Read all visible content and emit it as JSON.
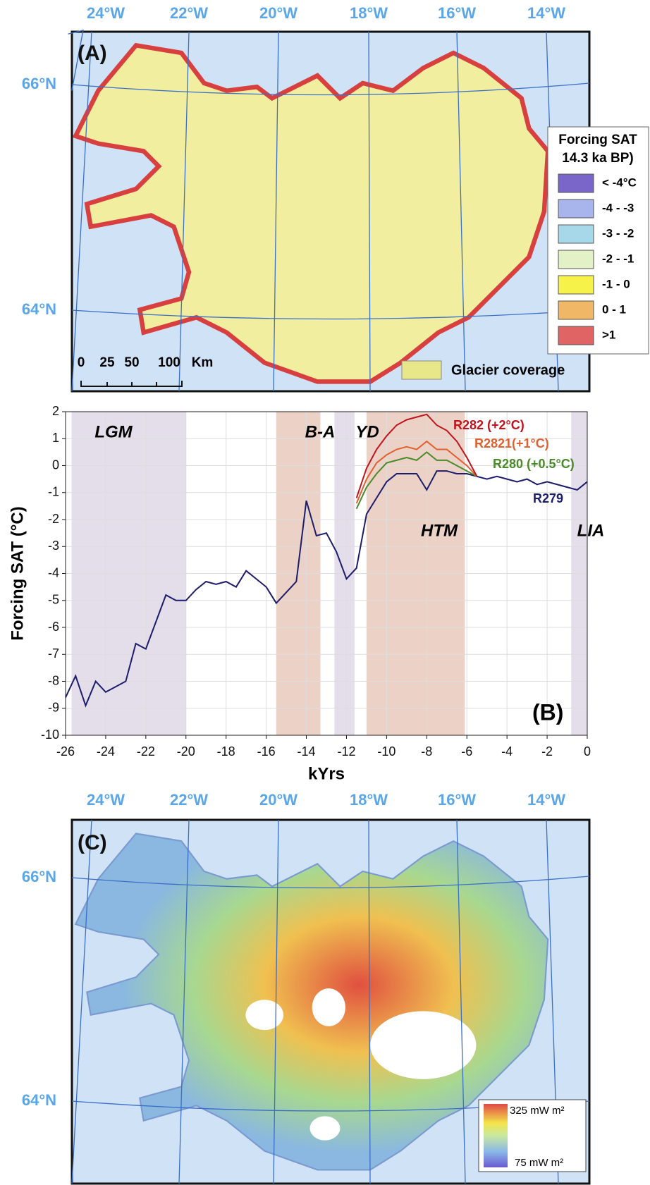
{
  "map_a": {
    "panel_label": "(A)",
    "lon_labels": [
      "24°W",
      "22°W",
      "20°W",
      "18°W",
      "16°W",
      "14°W"
    ],
    "lat_labels": [
      "66°N",
      "64°N"
    ],
    "scale_bar": [
      "0",
      "25",
      "50",
      "100",
      "Km"
    ],
    "legend": {
      "title": [
        "Forcing SAT",
        "14.3 ka BP)"
      ],
      "items": [
        {
          "label": "< -4°C",
          "color": "#7a66c8"
        },
        {
          "label": "-4 - -3",
          "color": "#a8b4ec"
        },
        {
          "label": "-3 - -2",
          "color": "#a6d8ea"
        },
        {
          "label": "-2 - -1",
          "color": "#e4f0c6"
        },
        {
          "label": "-1 - 0",
          "color": "#f7f24a"
        },
        {
          "label": "0 - 1",
          "color": "#f0b866"
        },
        {
          "label": ">1",
          "color": "#e06464"
        }
      ]
    },
    "glacier_label": "Glacier coverage"
  },
  "chart_data": {
    "type": "line",
    "panel_label": "(B)",
    "xlabel": "kYrs",
    "ylabel": "Forcing SAT (°C)",
    "xlim": [
      -26,
      0
    ],
    "xticks": [
      -26,
      -24,
      -22,
      -20,
      -18,
      -16,
      -14,
      -12,
      -10,
      -8,
      -6,
      -4,
      -2,
      0
    ],
    "ylim": [
      -10,
      2
    ],
    "yticks": [
      -10,
      -9,
      -8,
      -7,
      -6,
      -5,
      -4,
      -3,
      -2,
      -1,
      0,
      1,
      2
    ],
    "grid": true,
    "periods": [
      {
        "name": "LGM",
        "start": -25.7,
        "end": -20,
        "color": "#e3deea"
      },
      {
        "name": "B-A",
        "start": -15.5,
        "end": -13.3,
        "color": "#ecd2c6"
      },
      {
        "name": "YD",
        "start": -12.6,
        "end": -11.6,
        "color": "#e3deea"
      },
      {
        "name": "HTM",
        "start": -11,
        "end": -6.1,
        "color": "#ecd2c6"
      },
      {
        "name": "LIA",
        "start": -0.8,
        "end": 0,
        "color": "#e3deea"
      }
    ],
    "series": [
      {
        "name": "R279",
        "color": "#1c1c6a",
        "x": [
          -26,
          -25.5,
          -25,
          -24.5,
          -24,
          -23.5,
          -23,
          -22.5,
          -22,
          -21.5,
          -21,
          -20.5,
          -20,
          -19.5,
          -19,
          -18.5,
          -18,
          -17.5,
          -17,
          -16.5,
          -16,
          -15.5,
          -15,
          -14.5,
          -14,
          -13.5,
          -13,
          -12.5,
          -12,
          -11.5,
          -11,
          -10.5,
          -10,
          -9.5,
          -9,
          -8.5,
          -8,
          -7.5,
          -7,
          -6.5,
          -6,
          -5.5,
          -5,
          -4.5,
          -4,
          -3.5,
          -3,
          -2.5,
          -2,
          -1.5,
          -1,
          -0.5,
          0
        ],
        "values": [
          -8.6,
          -7.8,
          -8.9,
          -8.0,
          -8.4,
          -8.2,
          -8.0,
          -6.6,
          -6.8,
          -5.8,
          -4.8,
          -5.0,
          -5.0,
          -4.6,
          -4.3,
          -4.4,
          -4.3,
          -4.5,
          -3.9,
          -4.2,
          -4.5,
          -5.1,
          -4.7,
          -4.3,
          -1.3,
          -2.6,
          -2.5,
          -3.2,
          -4.2,
          -3.8,
          -1.8,
          -1.2,
          -0.6,
          -0.3,
          -0.3,
          -0.3,
          -0.9,
          -0.2,
          -0.2,
          -0.3,
          -0.3,
          -0.4,
          -0.5,
          -0.4,
          -0.5,
          -0.6,
          -0.5,
          -0.7,
          -0.6,
          -0.7,
          -0.8,
          -0.9,
          -0.6
        ]
      },
      {
        "name": "R280 (+0.5°C)",
        "color": "#4a8a2a",
        "x": [
          -11.5,
          -11,
          -10.5,
          -10,
          -9.5,
          -9,
          -8.5,
          -8,
          -7.5,
          -7,
          -6.5,
          -6,
          -5.5
        ],
        "values": [
          -1.6,
          -0.8,
          -0.3,
          0.1,
          0.2,
          0.3,
          0.2,
          0.5,
          0.2,
          0.2,
          0.0,
          -0.2,
          -0.4
        ]
      },
      {
        "name": "R2821(+1°C)",
        "color": "#e06030",
        "x": [
          -11.5,
          -11,
          -10.5,
          -10,
          -9.5,
          -9,
          -8.5,
          -8,
          -7.5,
          -7,
          -6.5,
          -6,
          -5.5
        ],
        "values": [
          -1.4,
          -0.5,
          0.1,
          0.4,
          0.6,
          0.7,
          0.6,
          0.9,
          0.6,
          0.6,
          0.3,
          0.0,
          -0.4
        ]
      },
      {
        "name": "R282 (+2°C)",
        "color": "#c0141c",
        "x": [
          -11.5,
          -11,
          -10.5,
          -10,
          -9.5,
          -9,
          -8.5,
          -8,
          -7.5,
          -7,
          -6.5,
          -6,
          -5.5
        ],
        "values": [
          -1.2,
          -0.1,
          0.6,
          1.1,
          1.5,
          1.7,
          1.8,
          1.9,
          1.5,
          1.3,
          0.9,
          0.3,
          -0.4
        ]
      }
    ]
  },
  "map_c": {
    "panel_label": "(C)",
    "lon_labels": [
      "24°W",
      "22°W",
      "20°W",
      "18°W",
      "16°W",
      "14°W"
    ],
    "lat_labels": [
      "66°N",
      "64°N"
    ],
    "legend": {
      "max_label": "325 mW m²",
      "min_label": "75 mW m²"
    }
  }
}
